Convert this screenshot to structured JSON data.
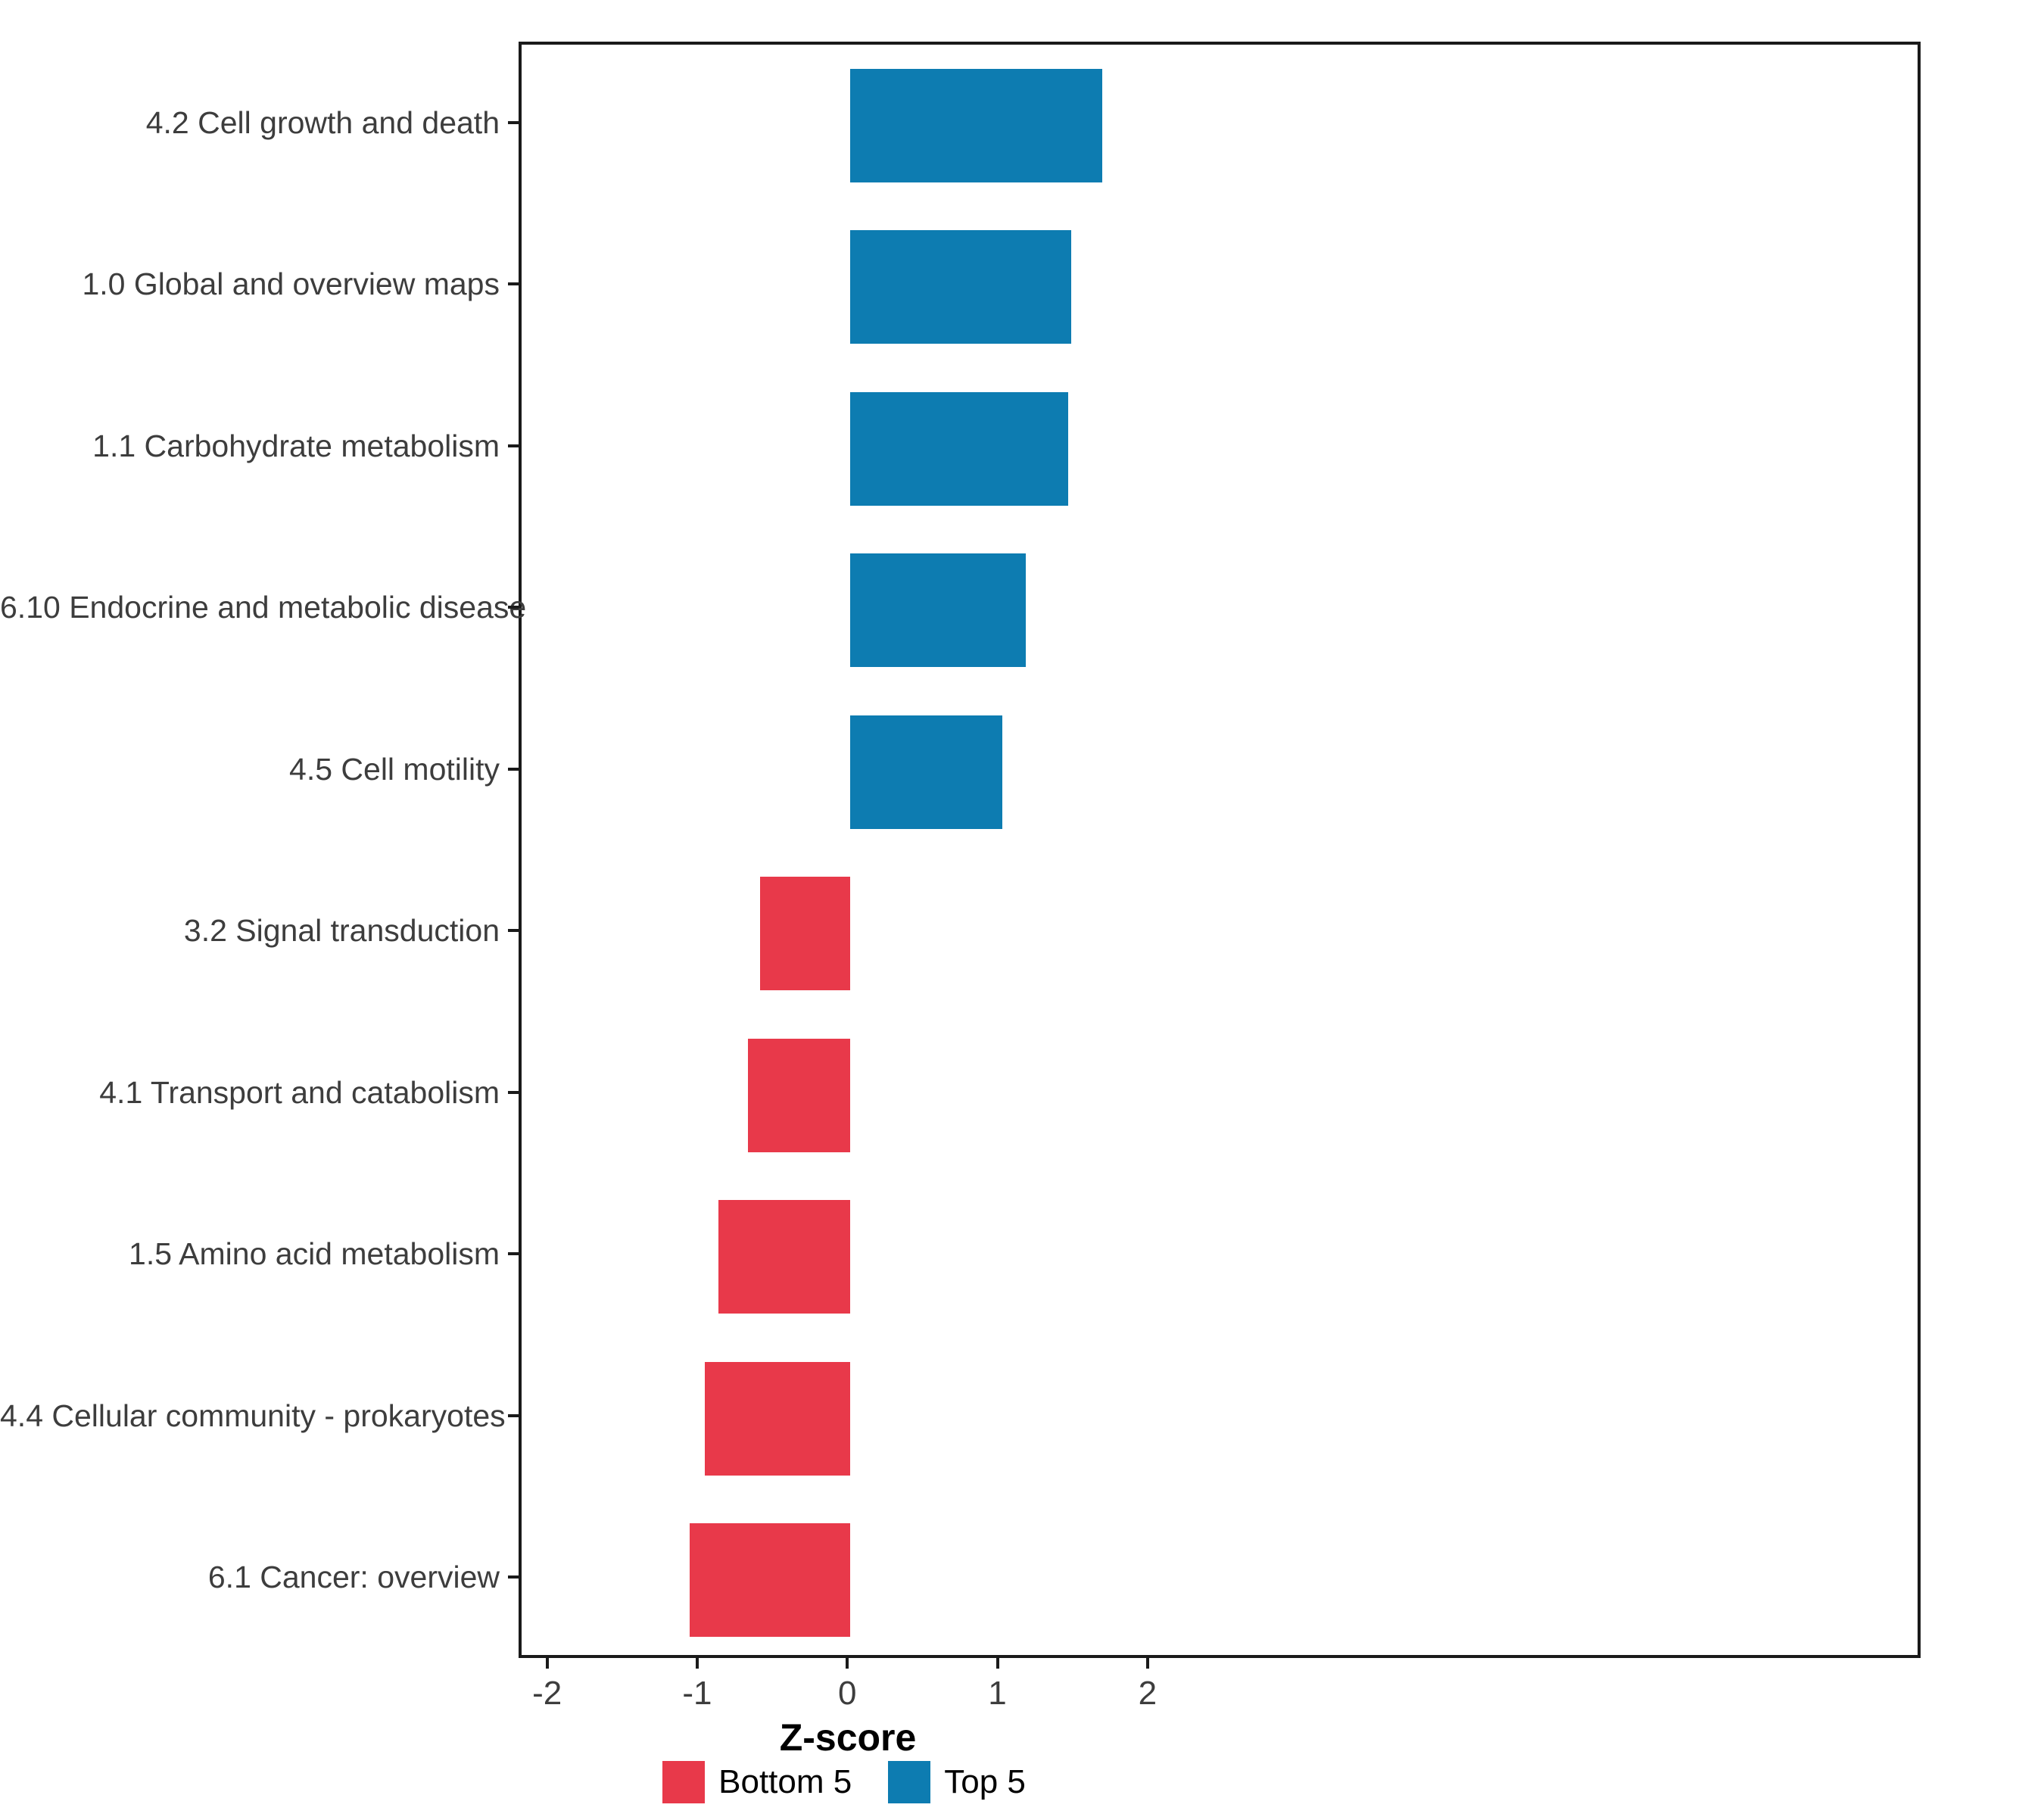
{
  "chart_data": {
    "type": "bar",
    "orientation": "horizontal",
    "title": "",
    "xlabel": "Z-score",
    "ylabel": "",
    "categories": [
      "4.2 Cell growth and death",
      "1.0 Global and overview maps",
      "1.1 Carbohydrate metabolism",
      "6.10 Endocrine and metabolic disease",
      "4.5 Cell motility",
      "3.2 Signal transduction",
      "4.1 Transport and catabolism",
      "1.5 Amino acid metabolism",
      "4.4 Cellular community - prokaryotes",
      "6.1 Cancer: overview"
    ],
    "values": [
      1.68,
      1.47,
      1.45,
      1.17,
      1.01,
      -0.6,
      -0.68,
      -0.88,
      -0.97,
      -1.07
    ],
    "groups": [
      "Top 5",
      "Top 5",
      "Top 5",
      "Top 5",
      "Top 5",
      "Bottom 5",
      "Bottom 5",
      "Bottom 5",
      "Bottom 5",
      "Bottom 5"
    ],
    "colors": {
      "Top 5": "#0D7CB1",
      "Bottom 5": "#E8394A"
    },
    "x_ticks": [
      "-2",
      "-1",
      "0",
      "1",
      "2"
    ],
    "x_tick_values": [
      -2,
      -1,
      0,
      1,
      2
    ],
    "xlim": [
      -2.19,
      7.15
    ],
    "grid": false,
    "legend": {
      "position": "bottom",
      "entries": [
        {
          "label": "Bottom 5",
          "color": "#E8394A"
        },
        {
          "label": "Top 5",
          "color": "#0D7CB1"
        }
      ]
    }
  }
}
